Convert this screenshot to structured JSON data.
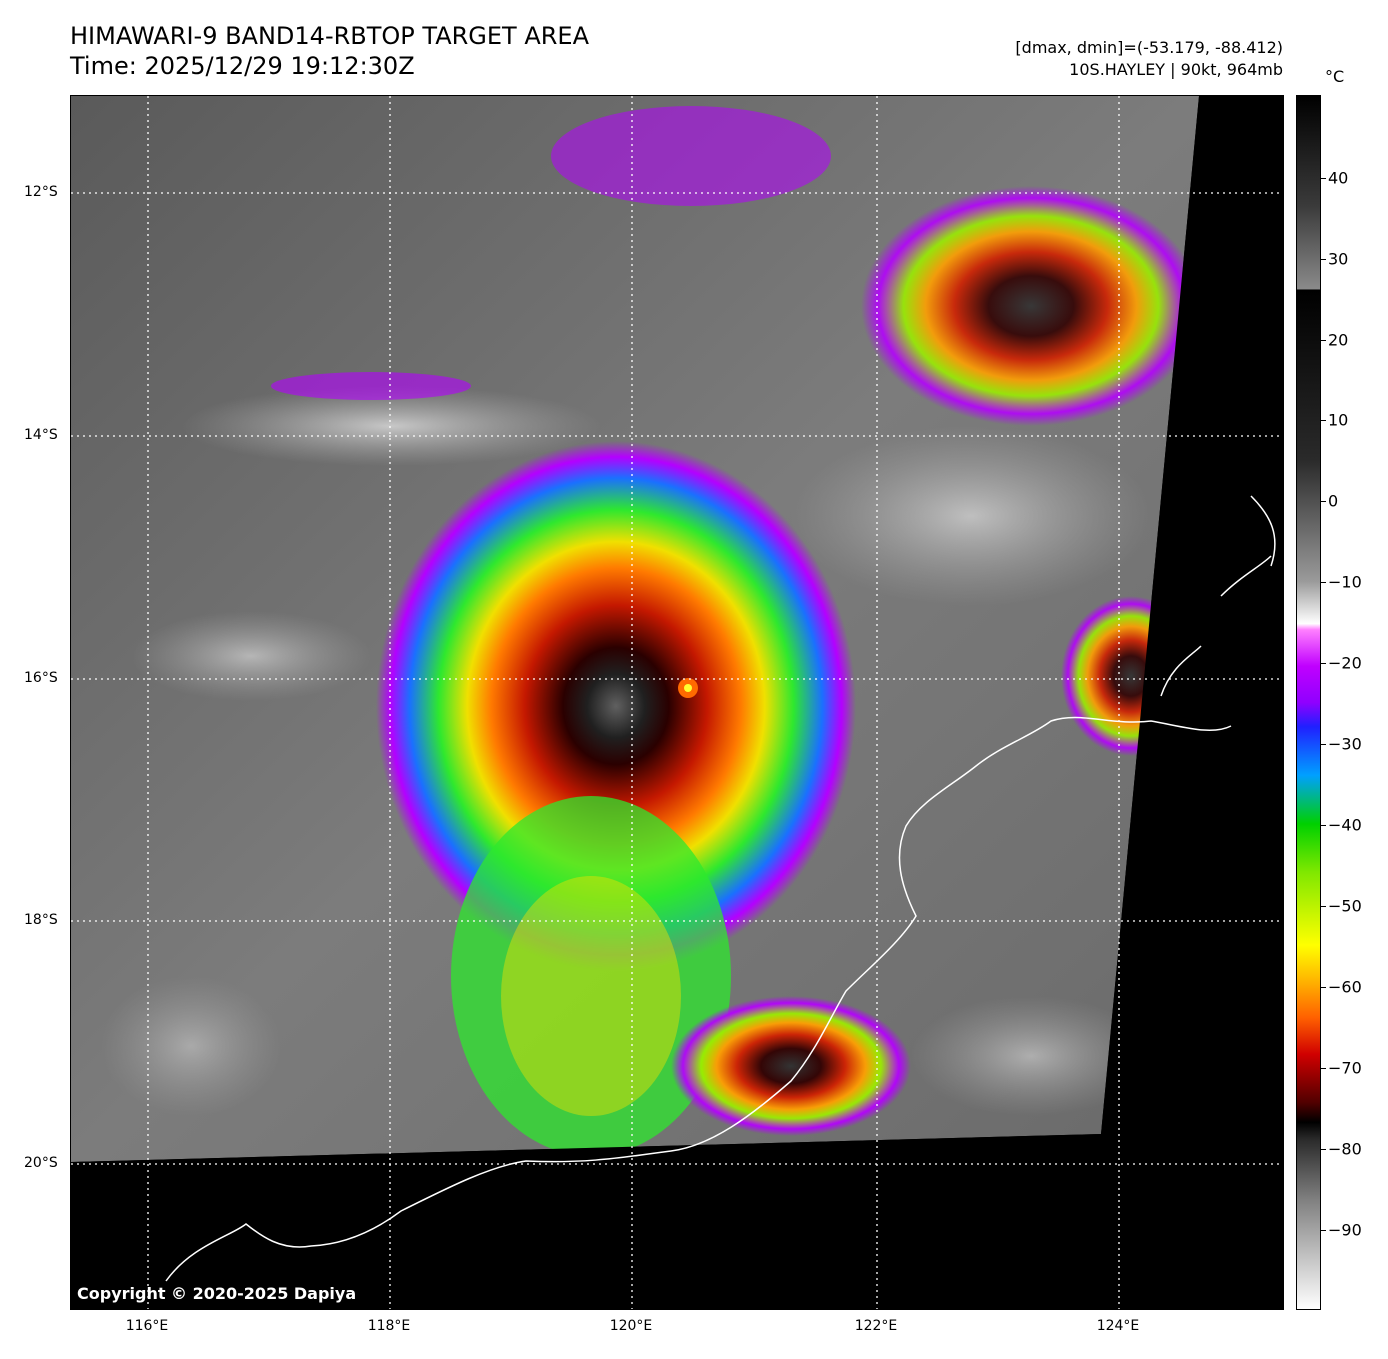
{
  "header": {
    "title_line1": "HIMAWARI-9 BAND14-RBTOP TARGET AREA",
    "title_line2": "Time: 2025/12/29 19:12:30Z",
    "dmax_dmin": "[dmax, dmin]=(-53.179, -88.412)",
    "storm_info": "10S.HAYLEY | 90kt, 964mb"
  },
  "map": {
    "lat_labels": [
      "12°S",
      "14°S",
      "16°S",
      "18°S",
      "20°S"
    ],
    "lon_labels": [
      "116°E",
      "118°E",
      "120°E",
      "122°E",
      "124°E"
    ],
    "copyright": "Copyright © 2020-2025 Dapiya",
    "storm_center": {
      "lat": -16.07,
      "lon": 120.45
    }
  },
  "colorbar": {
    "unit": "°C",
    "tick_labels": [
      "40",
      "30",
      "20",
      "10",
      "0",
      "−10",
      "−20",
      "−30",
      "−40",
      "−50",
      "−60",
      "−70",
      "−80",
      "−90"
    ],
    "tick_values": [
      40,
      30,
      20,
      10,
      0,
      -10,
      -20,
      -30,
      -40,
      -50,
      -60,
      -70,
      -80,
      -90
    ],
    "range": [
      -100,
      49
    ]
  },
  "colors": {
    "cloud_green": "#2ee82e",
    "cloud_yellow": "#ffd400",
    "cloud_red": "#c81400",
    "cloud_purple": "#b400ff",
    "coastline": "#ffffff"
  }
}
